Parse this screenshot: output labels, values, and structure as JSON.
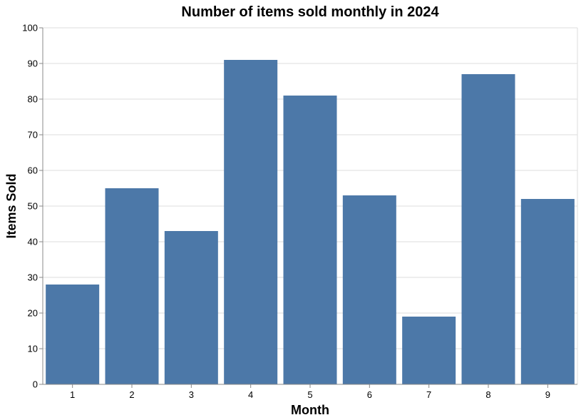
{
  "chart_data": {
    "type": "bar",
    "title": "Number of items sold monthly in 2024",
    "xlabel": "Month",
    "ylabel": "Items Sold",
    "categories": [
      "1",
      "2",
      "3",
      "4",
      "5",
      "6",
      "7",
      "8",
      "9"
    ],
    "values": [
      28,
      55,
      43,
      91,
      81,
      53,
      19,
      87,
      52
    ],
    "ylim": [
      0,
      100
    ],
    "yticks": [
      0,
      10,
      20,
      30,
      40,
      50,
      60,
      70,
      80,
      90,
      100
    ],
    "grid": true,
    "legend": "none",
    "bar_color": "#4c78a8"
  }
}
